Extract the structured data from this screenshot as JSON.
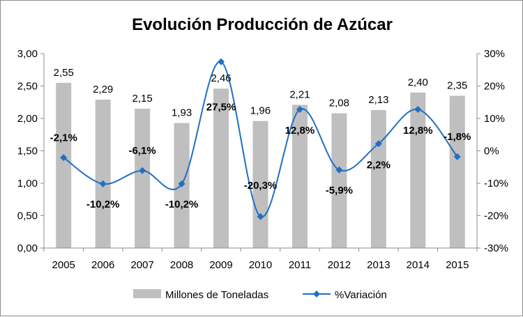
{
  "chart_data": {
    "type": "bar",
    "title": "Evolución Producción de Azúcar",
    "categories": [
      "2005",
      "2006",
      "2007",
      "2008",
      "2009",
      "2010",
      "2011",
      "2012",
      "2013",
      "2014",
      "2015"
    ],
    "series": [
      {
        "name": "Millones de Toneladas",
        "kind": "bar",
        "axis": "left",
        "values": [
          2.55,
          2.29,
          2.15,
          1.93,
          2.46,
          1.96,
          2.21,
          2.08,
          2.13,
          2.4,
          2.35
        ],
        "labels": [
          "2,55",
          "2,29",
          "2,15",
          "1,93",
          "2,46",
          "1,96",
          "2,21",
          "2,08",
          "2,13",
          "2,40",
          "2,35"
        ],
        "color": "#bfbfbf"
      },
      {
        "name": "%Variación",
        "kind": "line",
        "axis": "right",
        "values": [
          -2.1,
          -10.2,
          -6.1,
          -10.2,
          27.5,
          -20.3,
          12.8,
          -5.9,
          2.2,
          12.8,
          -1.8
        ],
        "labels": [
          "-2,1%",
          "-10,2%",
          "-6,1%",
          "-10,2%",
          "27,5%",
          "-20,3%",
          "12,8%",
          "-5,9%",
          "2,2%",
          "12,8%",
          "-1,8%"
        ],
        "color": "#1f6fc5"
      }
    ],
    "y_left": {
      "min": 0,
      "max": 3,
      "ticks": [
        "0,00",
        "0,50",
        "1,00",
        "1,50",
        "2,00",
        "2,50",
        "3,00"
      ]
    },
    "y_right": {
      "min": -30,
      "max": 30,
      "ticks": [
        "-30%",
        "-20%",
        "-10%",
        "0%",
        "10%",
        "20%",
        "30%"
      ]
    },
    "grid": false,
    "legend_position": "bottom"
  }
}
